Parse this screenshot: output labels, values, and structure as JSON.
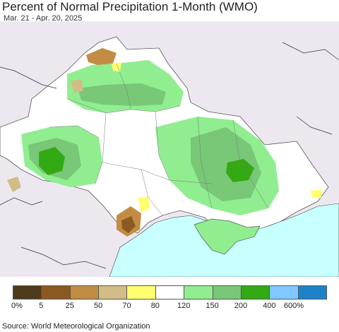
{
  "title": "Percent of Normal Precipitation 1-Month (WMO)",
  "subtitle": "Mar. 21 - Apr. 20, 2025",
  "source": "Source: World Meteorological Organization",
  "legend": {
    "colors": [
      "#4d3a1a",
      "#8b5a22",
      "#c28c45",
      "#d1bd85",
      "#ffff70",
      "#ffffff",
      "#90ee90",
      "#78c878",
      "#33aa14",
      "#80c8ff",
      "#1e82c8"
    ],
    "labels": [
      "0%",
      "5",
      "25",
      "50",
      "70",
      "80",
      "120",
      "150",
      "200",
      "400",
      "600%"
    ]
  },
  "map": {
    "outside_color": "#ede8f0",
    "sea_color": "#c8ffff",
    "base_color": "#ffffff"
  }
}
